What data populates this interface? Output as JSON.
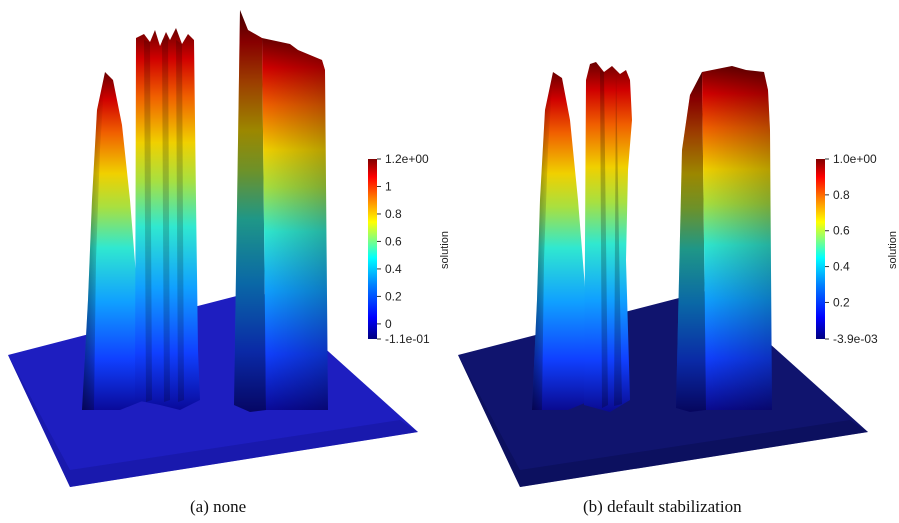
{
  "chart_data": [
    {
      "type": "surface-3d",
      "caption": "(a) none",
      "colorbar": {
        "title": "solution",
        "min": -0.11,
        "max": 1.2,
        "min_label": "-1.1e-01",
        "max_label": "1.2e+00",
        "ticks": [
          0,
          0.2,
          0.4,
          0.6,
          0.8,
          1
        ],
        "tick_labels": [
          "0",
          "0.2",
          "0.4",
          "0.6",
          "0.8",
          "1"
        ]
      }
    },
    {
      "type": "surface-3d",
      "caption": "(b) default stabilization",
      "colorbar": {
        "title": "solution",
        "min": -0.0039,
        "max": 1.0,
        "min_label": "-3.9e-03",
        "max_label": "1.0e+00",
        "ticks": [
          0.2,
          0.4,
          0.6,
          0.8
        ],
        "tick_labels": [
          "0.2",
          "0.4",
          "0.6",
          "0.8"
        ]
      }
    }
  ],
  "colors": {
    "floor_a": "#1a1ab4",
    "floor_b": "#0f146e",
    "jet": [
      "#00007f",
      "#0000ff",
      "#0080ff",
      "#00ffff",
      "#80ff80",
      "#ffff00",
      "#ff8000",
      "#ff0000",
      "#7f0000"
    ]
  }
}
